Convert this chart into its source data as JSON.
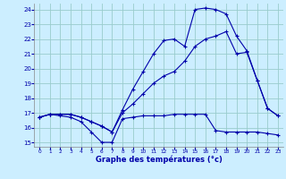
{
  "xlabel": "Graphe des températures (°c)",
  "background_color": "#cceeff",
  "grid_color": "#99cccc",
  "line_color": "#0000aa",
  "xlim": [
    -0.5,
    23.5
  ],
  "ylim": [
    14.7,
    24.4
  ],
  "yticks": [
    15,
    16,
    17,
    18,
    19,
    20,
    21,
    22,
    23,
    24
  ],
  "xticks": [
    0,
    1,
    2,
    3,
    4,
    5,
    6,
    7,
    8,
    9,
    10,
    11,
    12,
    13,
    14,
    15,
    16,
    17,
    18,
    19,
    20,
    21,
    22,
    23
  ],
  "series": [
    {
      "x": [
        0,
        1,
        2,
        3,
        4,
        5,
        6,
        7,
        8,
        9,
        10,
        11,
        12,
        13,
        14,
        15,
        16,
        17,
        18,
        19,
        20,
        21,
        22,
        23
      ],
      "y": [
        16.7,
        16.9,
        16.8,
        16.7,
        16.4,
        15.7,
        15.0,
        15.0,
        16.6,
        16.7,
        16.8,
        16.8,
        16.8,
        16.9,
        16.9,
        16.9,
        16.9,
        15.8,
        15.7,
        15.7,
        15.7,
        15.7,
        15.6,
        15.5
      ]
    },
    {
      "x": [
        0,
        1,
        2,
        3,
        4,
        5,
        6,
        7,
        8,
        9,
        10,
        11,
        12,
        13,
        14,
        15,
        16,
        17,
        18,
        19,
        20,
        21,
        22,
        23
      ],
      "y": [
        16.7,
        16.9,
        16.9,
        16.9,
        16.7,
        16.4,
        16.1,
        15.7,
        17.0,
        17.6,
        18.3,
        19.0,
        19.5,
        19.8,
        20.5,
        21.5,
        22.0,
        22.2,
        22.5,
        21.0,
        21.1,
        19.2,
        17.3,
        16.8
      ]
    },
    {
      "x": [
        0,
        1,
        2,
        3,
        4,
        5,
        6,
        7,
        8,
        9,
        10,
        11,
        12,
        13,
        14,
        15,
        16,
        17,
        18,
        19,
        20,
        21,
        22,
        23
      ],
      "y": [
        16.7,
        16.9,
        16.9,
        16.9,
        16.7,
        16.4,
        16.1,
        15.7,
        17.2,
        18.6,
        19.8,
        21.0,
        21.9,
        22.0,
        21.5,
        24.0,
        24.1,
        24.0,
        23.7,
        22.2,
        21.2,
        19.2,
        17.3,
        16.8
      ]
    }
  ]
}
